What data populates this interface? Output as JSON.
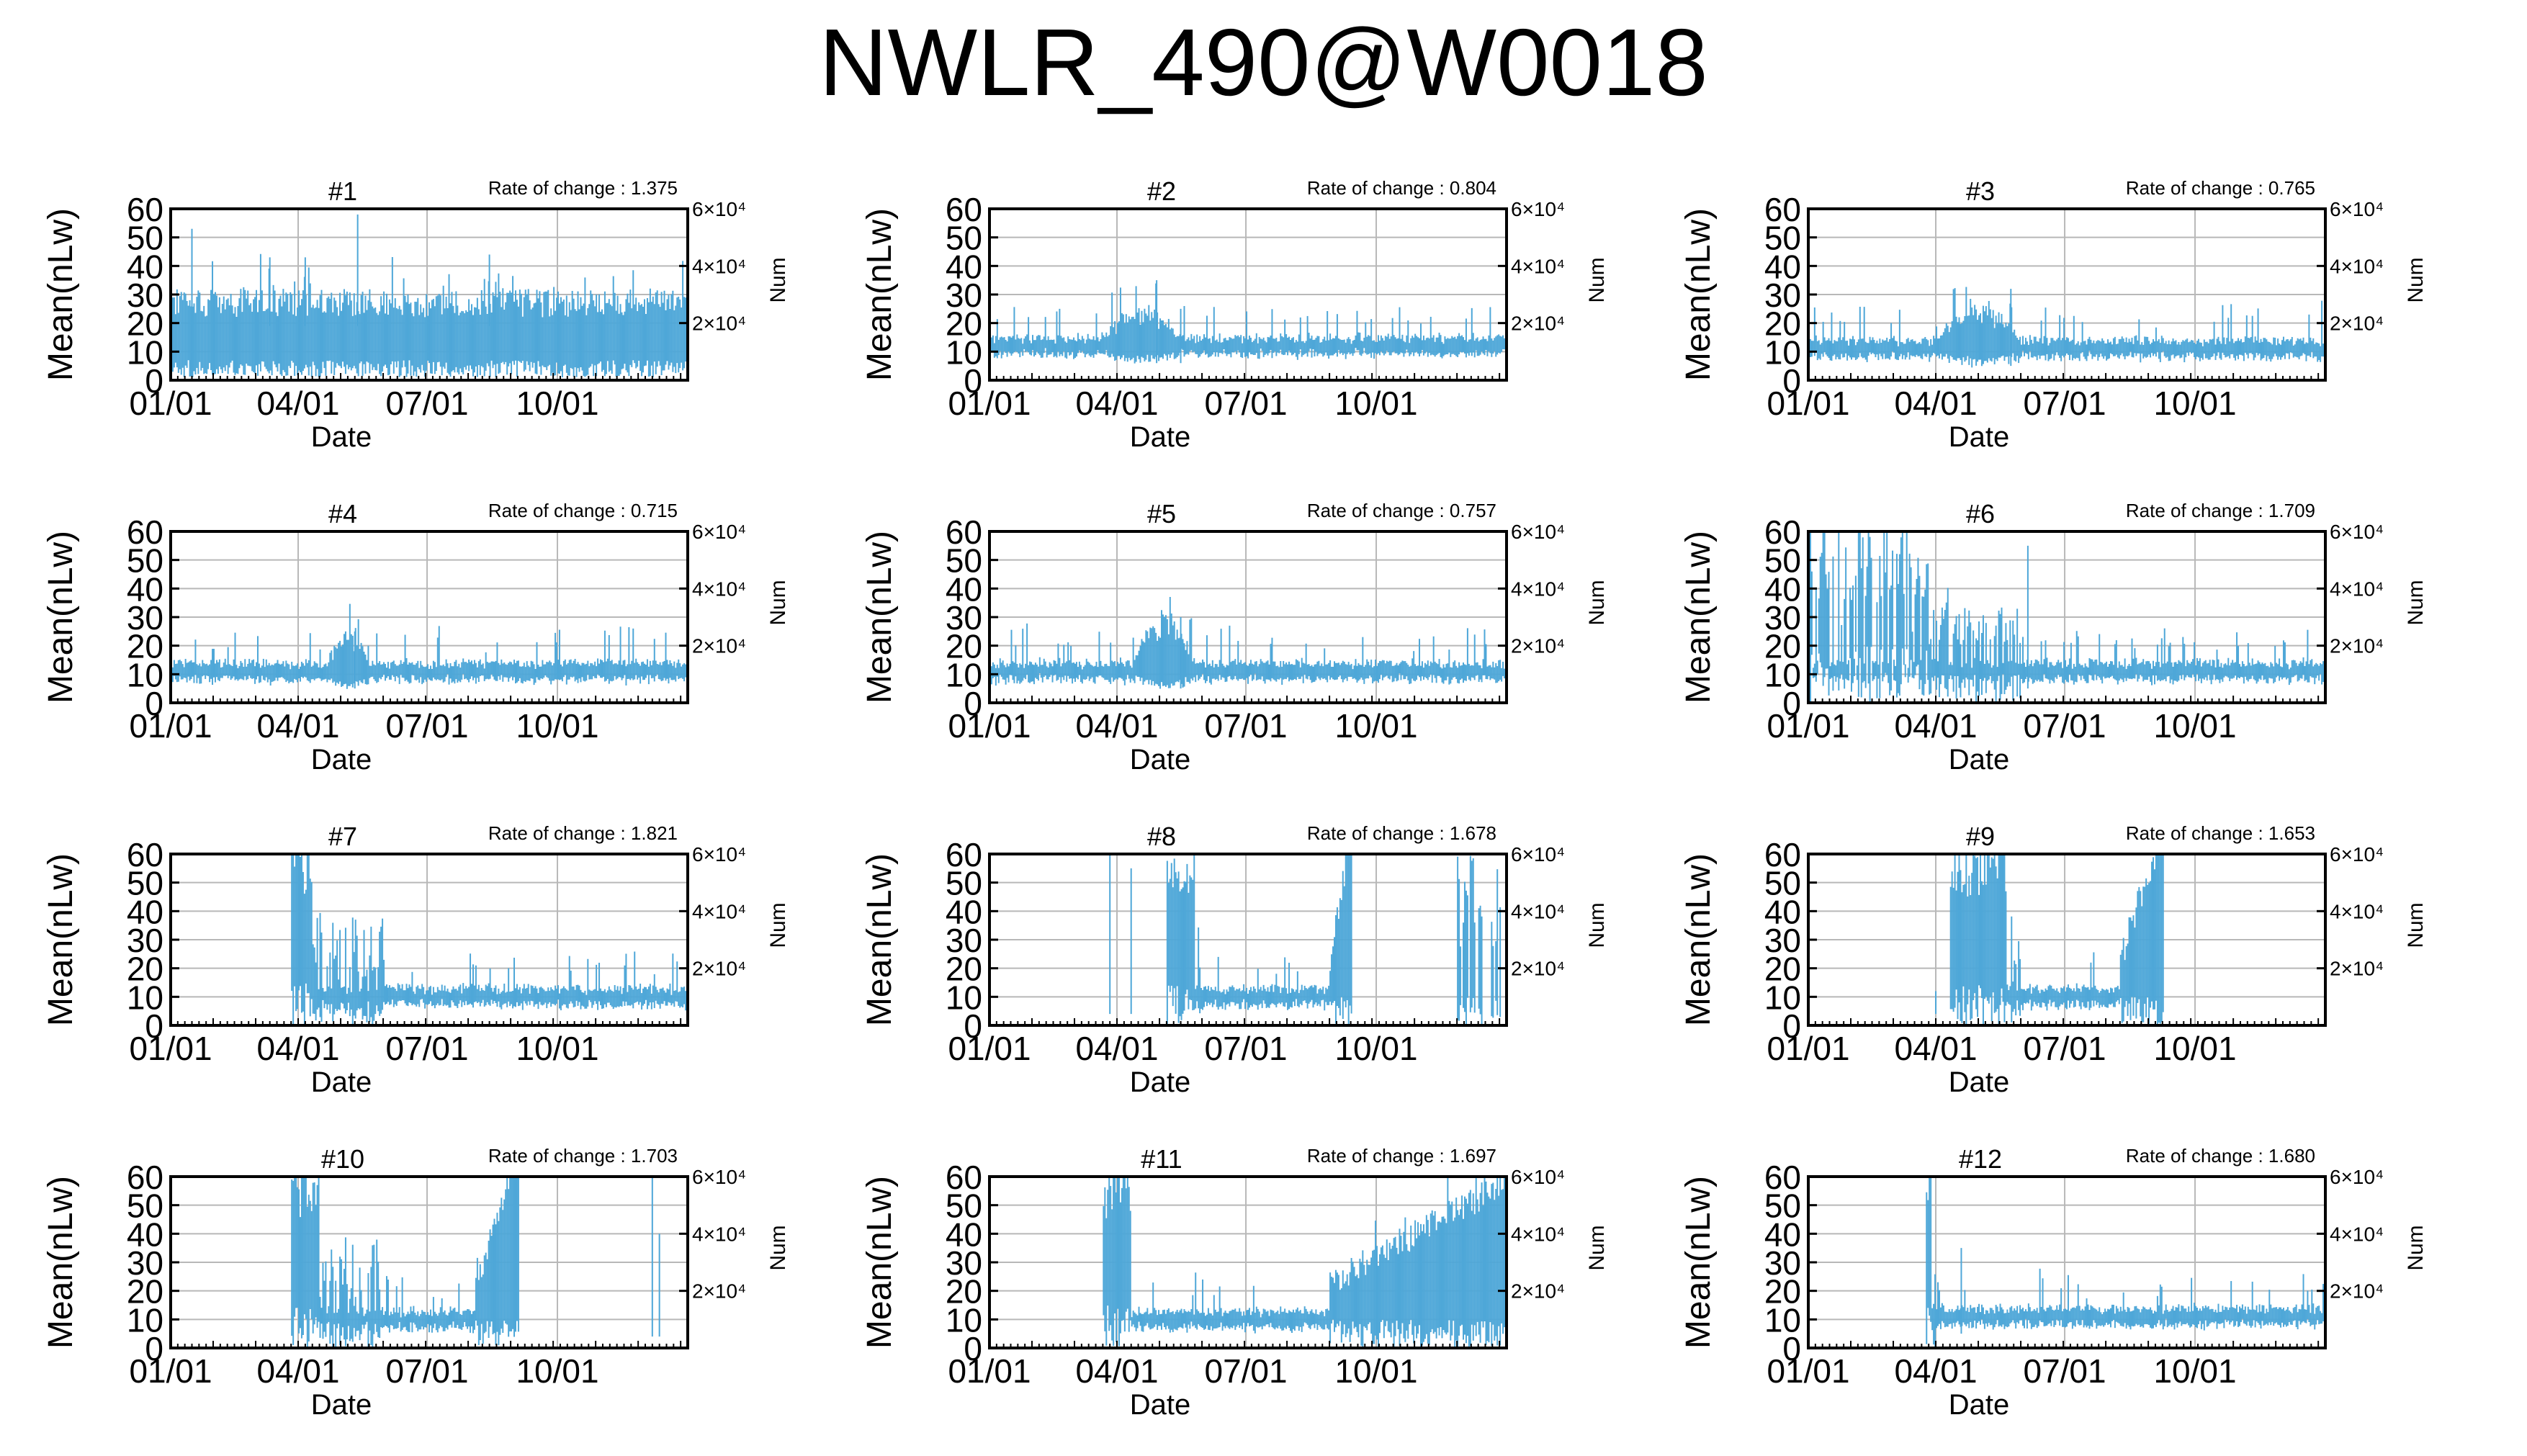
{
  "title": "NWLR_490@W0018",
  "chart_data": [
    {
      "type": "line",
      "title": "#1",
      "rate_label": "Rate of change : 1.375",
      "pattern": "full",
      "center": 25,
      "spread": 12,
      "peaks": [
        [
          15,
          53
        ],
        [
          70,
          43
        ],
        [
          95,
          43
        ],
        [
          132,
          58
        ],
        [
          225,
          44
        ]
      ]
    },
    {
      "type": "line",
      "title": "#2",
      "rate_label": "Rate of change : 0.804",
      "pattern": "spring",
      "center": 12,
      "spread": 4,
      "bumpStart": 80,
      "bumpEnd": 135,
      "bumpAdd": 10,
      "peaks": [
        [
          118,
          35
        ],
        [
          135,
          25
        ]
      ]
    },
    {
      "type": "line",
      "title": "#3",
      "rate_label": "Rate of change : 0.765",
      "pattern": "spring",
      "center": 11,
      "spread": 4,
      "bumpStart": 90,
      "bumpEnd": 150,
      "bumpAdd": 12,
      "peaks": [
        [
          143,
          32
        ]
      ]
    },
    {
      "type": "line",
      "title": "#4",
      "rate_label": "Rate of change : 0.715",
      "pattern": "spring",
      "center": 11,
      "spread": 4,
      "bumpStart": 110,
      "bumpEnd": 140,
      "bumpAdd": 11,
      "peaks": [
        [
          130,
          25
        ]
      ]
    },
    {
      "type": "line",
      "title": "#5",
      "rate_label": "Rate of change : 0.757",
      "pattern": "spring",
      "center": 11,
      "spread": 4,
      "bumpStart": 100,
      "bumpEnd": 145,
      "bumpAdd": 15,
      "peaks": [
        [
          135,
          30
        ]
      ]
    },
    {
      "type": "line",
      "title": "#6",
      "rate_label": "Rate of change : 1.709",
      "pattern": "winter",
      "center": 11,
      "spread": 4,
      "hiStart": 0,
      "hiEnd": 85,
      "midEnd": 150,
      "peaks": [
        [
          155,
          55
        ]
      ]
    },
    {
      "type": "line",
      "title": "#7",
      "rate_label": "Rate of change : 1.821",
      "pattern": "gap",
      "center": 10,
      "spread": 4,
      "dataStart": 85,
      "hiEnd": 100,
      "midEnd": 150,
      "lateStart": 400,
      "peaks": []
    },
    {
      "type": "line",
      "title": "#8",
      "rate_label": "Rate of change : 1.678",
      "pattern": "gap",
      "center": 10,
      "spread": 4,
      "dataStart": 125,
      "hiEnd": 145,
      "midEnd": 150,
      "lateStart": 240,
      "lateEnd": 255,
      "tailStart": 330,
      "peaks": [
        [
          85,
          60
        ],
        [
          100,
          55
        ]
      ]
    },
    {
      "type": "line",
      "title": "#9",
      "rate_label": "Rate of change : 1.653",
      "pattern": "gap",
      "center": 10,
      "spread": 4,
      "dataStart": 100,
      "hiEnd": 140,
      "midEnd": 150,
      "lateStart": 220,
      "lateEnd": 250,
      "tailStart": 400,
      "peaks": [
        [
          90,
          12
        ]
      ]
    },
    {
      "type": "line",
      "title": "#10",
      "rate_label": "Rate of change : 1.703",
      "pattern": "gap",
      "center": 10,
      "spread": 4,
      "dataStart": 85,
      "hiEnd": 105,
      "midEnd": 150,
      "lateStart": 215,
      "lateEnd": 245,
      "tailStart": 400,
      "peaks": [
        [
          340,
          60
        ],
        [
          345,
          40
        ]
      ]
    },
    {
      "type": "line",
      "title": "#11",
      "rate_label": "Rate of change : 1.697",
      "pattern": "gap",
      "center": 10,
      "spread": 4,
      "dataStart": 80,
      "hiEnd": 100,
      "midEnd": 100,
      "lateStart": 240,
      "lateEnd": 400,
      "tailStart": 400,
      "peaks": []
    },
    {
      "type": "line",
      "title": "#12",
      "rate_label": "Rate of change : 1.680",
      "pattern": "gap",
      "center": 11,
      "spread": 4,
      "dataStart": 83,
      "hiEnd": 87,
      "midEnd": 90,
      "lateStart": 400,
      "tailStart": 400,
      "peaks": [
        [
          108,
          35
        ]
      ]
    }
  ],
  "axes": {
    "x_label": "Date",
    "y_label": "Mean(nLw)",
    "y2_label": "Num",
    "y_ticks": [
      0,
      10,
      20,
      30,
      40,
      50,
      60
    ],
    "x_ticks": [
      {
        "label": "01/01",
        "day": 0
      },
      {
        "label": "04/01",
        "day": 90
      },
      {
        "label": "07/01",
        "day": 181
      },
      {
        "label": "10/01",
        "day": 273
      }
    ],
    "y2_ticks": [
      {
        "label": "2×10⁴",
        "value": 20000
      },
      {
        "label": "4×10⁴",
        "value": 40000
      },
      {
        "label": "6×10⁴",
        "value": 60000
      }
    ],
    "ylim": [
      0,
      60
    ],
    "y2lim": [
      0,
      60000
    ],
    "xlim": [
      0,
      365
    ],
    "grid": true
  },
  "colors": {
    "series": "#4ea7d8",
    "grid": "#b8b8b8",
    "axis": "#000000"
  }
}
